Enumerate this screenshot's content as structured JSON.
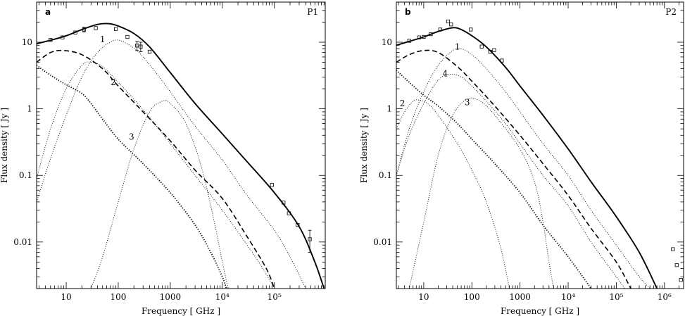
{
  "chart_data": [
    {
      "type": "line",
      "panel_letter": "a",
      "panel_id": "P1",
      "xlabel": "Frequency [ GHz ]",
      "ylabel": "Flux density [ Jy ]",
      "xscale": "log",
      "yscale": "log",
      "xlim": [
        2.7,
        950000
      ],
      "ylim": [
        0.002,
        40
      ],
      "xticks": [
        {
          "v": 10,
          "label": "10"
        },
        {
          "v": 100,
          "label": "100"
        },
        {
          "v": 1000,
          "label": "1000"
        },
        {
          "v": 10000,
          "label": "10⁴"
        },
        {
          "v": 100000,
          "label": "10⁵"
        }
      ],
      "yticks": [
        {
          "v": 0.01,
          "label": "0.01"
        },
        {
          "v": 0.1,
          "label": "0.1"
        },
        {
          "v": 1,
          "label": "1"
        },
        {
          "v": 10,
          "label": "10"
        }
      ],
      "series": [
        {
          "style": "solid",
          "points": [
            [
              2.7,
              9.5
            ],
            [
              5,
              10.7
            ],
            [
              10,
              12.5
            ],
            [
              20,
              15.5
            ],
            [
              40,
              18.5
            ],
            [
              65,
              19.0
            ],
            [
              100,
              17.5
            ],
            [
              200,
              13.5
            ],
            [
              400,
              8.5
            ],
            [
              1000,
              3.5
            ],
            [
              3000,
              1.2
            ],
            [
              10000,
              0.42
            ],
            [
              30000,
              0.16
            ],
            [
              100000,
              0.055
            ],
            [
              300000,
              0.017
            ],
            [
              600000,
              0.005
            ],
            [
              900000,
              0.002
            ]
          ]
        },
        {
          "style": "dashed",
          "points": [
            [
              2.7,
              5.0
            ],
            [
              5,
              7.0
            ],
            [
              9,
              7.5
            ],
            [
              20,
              6.5
            ],
            [
              50,
              4.0
            ],
            [
              100,
              2.2
            ],
            [
              300,
              0.9
            ],
            [
              1000,
              0.33
            ],
            [
              3000,
              0.12
            ],
            [
              10000,
              0.045
            ],
            [
              30000,
              0.012
            ],
            [
              70000,
              0.004
            ],
            [
              100000,
              0.002
            ]
          ]
        },
        {
          "style": "dotted-thick",
          "points": [
            [
              2.7,
              4.5
            ],
            [
              5,
              3.2
            ],
            [
              10,
              2.3
            ],
            [
              20,
              1.7
            ],
            [
              30,
              1.2
            ],
            [
              50,
              0.7
            ],
            [
              100,
              0.35
            ],
            [
              300,
              0.15
            ],
            [
              1000,
              0.055
            ],
            [
              3000,
              0.018
            ],
            [
              6000,
              0.007
            ],
            [
              10000,
              0.003
            ],
            [
              12000,
              0.002
            ]
          ]
        },
        {
          "style": "dotted",
          "label": "1",
          "label_at": [
            50,
            11.0
          ],
          "points": [
            [
              2.7,
              0.04
            ],
            [
              5,
              0.18
            ],
            [
              10,
              0.8
            ],
            [
              20,
              3.0
            ],
            [
              40,
              7.0
            ],
            [
              80,
              10.5
            ],
            [
              130,
              10.0
            ],
            [
              250,
              7.0
            ],
            [
              500,
              3.7
            ],
            [
              1000,
              1.8
            ],
            [
              3000,
              0.55
            ],
            [
              10000,
              0.17
            ],
            [
              30000,
              0.05
            ],
            [
              100000,
              0.015
            ],
            [
              200000,
              0.006
            ],
            [
              400000,
              0.002
            ]
          ]
        },
        {
          "style": "dotted",
          "label": "2",
          "label_at": [
            80,
            2.5
          ],
          "points": [
            [
              2.7,
              0.09
            ],
            [
              5,
              0.5
            ],
            [
              10,
              2.0
            ],
            [
              20,
              4.5
            ],
            [
              30,
              5.0
            ],
            [
              50,
              4.3
            ],
            [
              100,
              2.5
            ],
            [
              200,
              1.4
            ],
            [
              500,
              0.6
            ],
            [
              1000,
              0.3
            ],
            [
              3000,
              0.1
            ],
            [
              10000,
              0.03
            ],
            [
              30000,
              0.009
            ],
            [
              60000,
              0.004
            ],
            [
              100000,
              0.002
            ]
          ]
        },
        {
          "style": "dotted",
          "label": "3",
          "label_at": [
            180,
            0.38
          ],
          "points": [
            [
              30,
              0.002
            ],
            [
              50,
              0.006
            ],
            [
              100,
              0.04
            ],
            [
              200,
              0.25
            ],
            [
              400,
              0.9
            ],
            [
              700,
              1.3
            ],
            [
              1000,
              1.2
            ],
            [
              2000,
              0.6
            ],
            [
              4000,
              0.13
            ],
            [
              7000,
              0.02
            ],
            [
              10000,
              0.005
            ],
            [
              13000,
              0.002
            ]
          ]
        }
      ],
      "data_points": [
        {
          "x": 5,
          "y": 10.8
        },
        {
          "x": 8.5,
          "y": 11.8
        },
        {
          "x": 15,
          "y": 14.0
        },
        {
          "x": 22,
          "y": 15.5,
          "err": 1.2
        },
        {
          "x": 37,
          "y": 16.3
        },
        {
          "x": 90,
          "y": 15.8
        },
        {
          "x": 150,
          "y": 12.0
        },
        {
          "x": 230,
          "y": 8.9,
          "err": 1.4
        },
        {
          "x": 270,
          "y": 8.6,
          "err": 1.4
        },
        {
          "x": 400,
          "y": 7.2
        },
        {
          "x": 90000,
          "y": 0.072
        },
        {
          "x": 150000,
          "y": 0.039
        },
        {
          "x": 190000,
          "y": 0.027
        },
        {
          "x": 280000,
          "y": 0.018
        },
        {
          "x": 480000,
          "y": 0.011,
          "err": 0.004
        }
      ]
    },
    {
      "type": "line",
      "panel_letter": "b",
      "panel_id": "P2",
      "xlabel": "Frequency [ GHz ]",
      "ylabel": "Flux density [ Jy ]",
      "xscale": "log",
      "yscale": "log",
      "xlim": [
        2.7,
        2500000
      ],
      "ylim": [
        0.002,
        40
      ],
      "xticks": [
        {
          "v": 10,
          "label": "10"
        },
        {
          "v": 100,
          "label": "100"
        },
        {
          "v": 1000,
          "label": "1000"
        },
        {
          "v": 10000,
          "label": "10⁴"
        },
        {
          "v": 100000,
          "label": "10⁵"
        },
        {
          "v": 1000000,
          "label": "10⁶"
        }
      ],
      "yticks": [
        {
          "v": 0.01,
          "label": "0.01"
        },
        {
          "v": 0.1,
          "label": "0.1"
        },
        {
          "v": 1,
          "label": "1"
        },
        {
          "v": 10,
          "label": "10"
        }
      ],
      "series": [
        {
          "style": "solid",
          "points": [
            [
              2.7,
              9.0
            ],
            [
              5,
              10.3
            ],
            [
              10,
              12.0
            ],
            [
              20,
              14.5
            ],
            [
              40,
              16.5
            ],
            [
              60,
              15.5
            ],
            [
              100,
              12.5
            ],
            [
              200,
              8.5
            ],
            [
              500,
              4.2
            ],
            [
              1000,
              2.2
            ],
            [
              3000,
              0.8
            ],
            [
              10000,
              0.25
            ],
            [
              30000,
              0.08
            ],
            [
              100000,
              0.024
            ],
            [
              300000,
              0.007
            ],
            [
              700000,
              0.002
            ]
          ]
        },
        {
          "style": "dashed",
          "points": [
            [
              2.7,
              5.0
            ],
            [
              5,
              6.5
            ],
            [
              10,
              7.5
            ],
            [
              20,
              7.0
            ],
            [
              50,
              4.3
            ],
            [
              100,
              2.6
            ],
            [
              300,
              1.1
            ],
            [
              1000,
              0.4
            ],
            [
              3000,
              0.15
            ],
            [
              10000,
              0.05
            ],
            [
              30000,
              0.016
            ],
            [
              100000,
              0.005
            ],
            [
              200000,
              0.002
            ]
          ]
        },
        {
          "style": "dotted-thick",
          "points": [
            [
              2.7,
              3.8
            ],
            [
              5,
              2.5
            ],
            [
              10,
              1.6
            ],
            [
              20,
              1.1
            ],
            [
              50,
              0.6
            ],
            [
              100,
              0.35
            ],
            [
              300,
              0.15
            ],
            [
              1000,
              0.055
            ],
            [
              3000,
              0.018
            ],
            [
              10000,
              0.006
            ],
            [
              30000,
              0.002
            ]
          ]
        },
        {
          "style": "dotted",
          "label": "1",
          "label_at": [
            50,
            8.5
          ],
          "points": [
            [
              2.7,
              0.1
            ],
            [
              5,
              0.5
            ],
            [
              10,
              1.8
            ],
            [
              20,
              4.5
            ],
            [
              40,
              7.5
            ],
            [
              60,
              8.0
            ],
            [
              100,
              6.5
            ],
            [
              200,
              4.0
            ],
            [
              500,
              1.8
            ],
            [
              1000,
              0.9
            ],
            [
              3000,
              0.3
            ],
            [
              10000,
              0.1
            ],
            [
              30000,
              0.03
            ],
            [
              100000,
              0.009
            ],
            [
              300000,
              0.003
            ],
            [
              500000,
              0.002
            ]
          ]
        },
        {
          "style": "dotted",
          "label": "4",
          "label_at": [
            28,
            3.4
          ],
          "points": [
            [
              2.7,
              0.1
            ],
            [
              5,
              0.4
            ],
            [
              10,
              1.2
            ],
            [
              20,
              2.7
            ],
            [
              35,
              3.3
            ],
            [
              60,
              3.0
            ],
            [
              100,
              2.2
            ],
            [
              200,
              1.3
            ],
            [
              500,
              0.6
            ],
            [
              1000,
              0.3
            ],
            [
              3000,
              0.1
            ],
            [
              10000,
              0.035
            ],
            [
              30000,
              0.01
            ],
            [
              100000,
              0.003
            ],
            [
              150000,
              0.002
            ]
          ]
        },
        {
          "style": "dotted",
          "label": "2",
          "label_at": [
            3.6,
            1.2
          ],
          "points": [
            [
              2.7,
              0.5
            ],
            [
              4,
              0.9
            ],
            [
              6,
              1.3
            ],
            [
              8,
              1.35
            ],
            [
              12,
              1.2
            ],
            [
              20,
              0.8
            ],
            [
              50,
              0.3
            ],
            [
              100,
              0.12
            ],
            [
              200,
              0.04
            ],
            [
              400,
              0.008
            ],
            [
              600,
              0.002
            ]
          ]
        },
        {
          "style": "dotted",
          "label": "3",
          "label_at": [
            80,
            1.25
          ],
          "points": [
            [
              5,
              0.002
            ],
            [
              10,
              0.02
            ],
            [
              20,
              0.2
            ],
            [
              40,
              0.8
            ],
            [
              80,
              1.4
            ],
            [
              150,
              1.3
            ],
            [
              300,
              0.8
            ],
            [
              1000,
              0.25
            ],
            [
              2000,
              0.08
            ],
            [
              3000,
              0.02
            ],
            [
              4000,
              0.005
            ],
            [
              5000,
              0.002
            ]
          ]
        }
      ],
      "data_points": [
        {
          "x": 5,
          "y": 10.5
        },
        {
          "x": 8,
          "y": 11.8
        },
        {
          "x": 10,
          "y": 12.0
        },
        {
          "x": 14,
          "y": 13.2
        },
        {
          "x": 22,
          "y": 15.5
        },
        {
          "x": 32,
          "y": 20.5
        },
        {
          "x": 37,
          "y": 18.5
        },
        {
          "x": 95,
          "y": 15.5
        },
        {
          "x": 160,
          "y": 8.6
        },
        {
          "x": 240,
          "y": 7.2
        },
        {
          "x": 290,
          "y": 7.6
        },
        {
          "x": 420,
          "y": 5.3
        },
        {
          "x": 1500000,
          "y": 0.0078
        },
        {
          "x": 1800000,
          "y": 0.0045
        },
        {
          "x": 2200000,
          "y": 0.0027
        }
      ]
    }
  ]
}
